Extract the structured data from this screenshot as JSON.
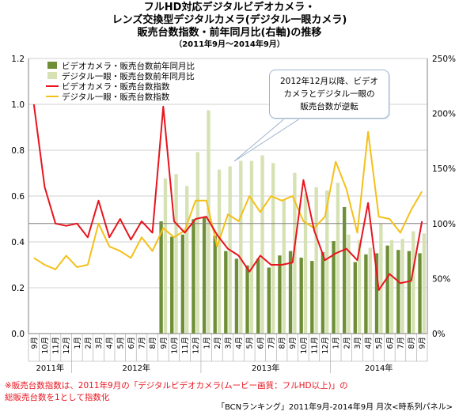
{
  "title": {
    "line1": "フルHD対応デジタルビデオカメラ・",
    "line2": "レンズ交換型デジタルカメラ(デジタル一眼カメラ)",
    "line3": "販売台数指数・前年同月比(右軸)の推移",
    "period": "（2011年9月〜2014年9月）"
  },
  "annotation": {
    "line1": "2012年12月以降、ビデオ",
    "line2": "カメラとデジタル一眼の",
    "line3": "販売台数が逆転"
  },
  "footnote": {
    "line1": "※販売台数指数は、2011年9月の「デジタルビデオカメラ(ムービー画質：フルHD以上)」の",
    "line2": "総販売台数を1として指数化"
  },
  "source": "「BCNランキング」2011年9月-2014年9月 月次<時系列パネル>",
  "colors": {
    "video_bar": "#6f8f36",
    "dslr_bar": "#d6e2b4",
    "video_line": "#e8141e",
    "dslr_line": "#f4c01a",
    "grid": "#c0c0c0",
    "ref_line": "#808080"
  },
  "chart_data": {
    "type": "bar+line",
    "legend_position": "top-left",
    "grid": true,
    "year_labels": [
      "2011年",
      "2012年",
      "2013年",
      "2014年"
    ],
    "categories": [
      "9月",
      "10月",
      "11月",
      "12月",
      "1月",
      "2月",
      "3月",
      "4月",
      "5月",
      "6月",
      "7月",
      "8月",
      "9月",
      "10月",
      "11月",
      "12月",
      "1月",
      "2月",
      "3月",
      "4月",
      "5月",
      "6月",
      "7月",
      "8月",
      "9月",
      "10月",
      "11月",
      "12月",
      "1月",
      "2月",
      "3月",
      "4月",
      "5月",
      "6月",
      "7月",
      "8月",
      "9月"
    ],
    "y_left": {
      "min": 0,
      "max": 1.2,
      "ticks": [
        "0.0",
        "0.2",
        "0.4",
        "0.6",
        "0.8",
        "1.0",
        "1.2"
      ]
    },
    "y_right": {
      "min": 0,
      "max": 250,
      "ticks": [
        "0%",
        "50%",
        "100%",
        "150%",
        "200%",
        "250%"
      ]
    },
    "series": [
      {
        "name": "ビデオカメラ・販売台数前年同月比",
        "type": "bar",
        "axis": "right",
        "values": [
          null,
          null,
          null,
          null,
          null,
          null,
          null,
          null,
          null,
          null,
          null,
          null,
          102,
          88,
          90,
          104,
          106,
          89,
          75,
          68,
          62,
          68,
          60,
          71,
          75,
          69,
          66,
          74,
          84,
          115,
          65,
          72,
          73,
          80,
          76,
          75,
          73
        ]
      },
      {
        "name": "デジタル一眼・販売台数前年同月比",
        "type": "bar",
        "axis": "right",
        "values": [
          null,
          null,
          null,
          null,
          null,
          null,
          null,
          null,
          null,
          null,
          null,
          null,
          141,
          145,
          134,
          165,
          203,
          149,
          152,
          157,
          157,
          162,
          155,
          122,
          146,
          127,
          133,
          130,
          137,
          90,
          85,
          78,
          100,
          85,
          86,
          93,
          91
        ]
      },
      {
        "name": "ビデオカメラ・販売台数指数",
        "type": "line",
        "axis": "left",
        "values": [
          1.0,
          0.64,
          0.48,
          0.47,
          0.48,
          0.42,
          0.58,
          0.42,
          0.5,
          0.41,
          0.49,
          0.44,
          0.99,
          0.49,
          0.44,
          0.5,
          0.51,
          0.43,
          0.37,
          0.34,
          0.27,
          0.34,
          0.3,
          0.3,
          0.31,
          0.67,
          0.45,
          0.32,
          0.35,
          0.37,
          0.32,
          0.57,
          0.19,
          0.26,
          0.22,
          0.23,
          0.49
        ]
      },
      {
        "name": "デジタル一眼・販売台数指数",
        "type": "line",
        "axis": "left",
        "values": [
          0.33,
          0.3,
          0.28,
          0.34,
          0.29,
          0.3,
          0.48,
          0.38,
          0.36,
          0.33,
          0.42,
          0.36,
          0.46,
          0.42,
          0.45,
          0.58,
          0.58,
          0.38,
          0.52,
          0.49,
          0.6,
          0.53,
          0.6,
          0.58,
          0.6,
          0.49,
          0.46,
          0.51,
          0.75,
          0.63,
          0.44,
          0.88,
          0.51,
          0.5,
          0.44,
          0.54,
          0.62
        ]
      }
    ]
  }
}
